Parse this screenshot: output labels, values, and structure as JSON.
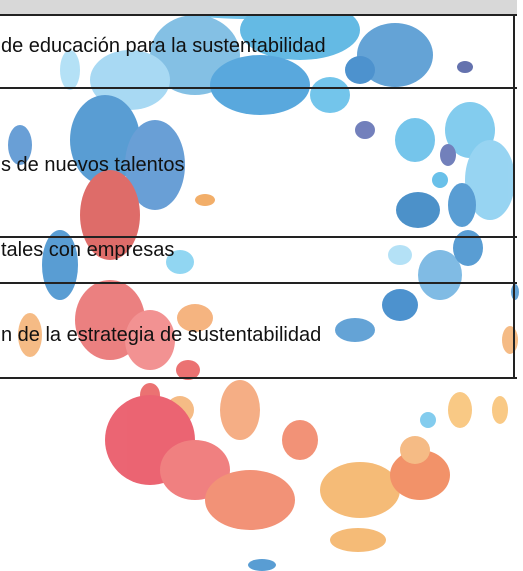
{
  "table": {
    "rows": [
      [
        "de educación para la sustentabilidad"
      ],
      [
        "s de nuevos talentos"
      ],
      [
        "tales con empresas"
      ],
      [
        "n de la estrategia de sustentabilidad"
      ]
    ]
  }
}
